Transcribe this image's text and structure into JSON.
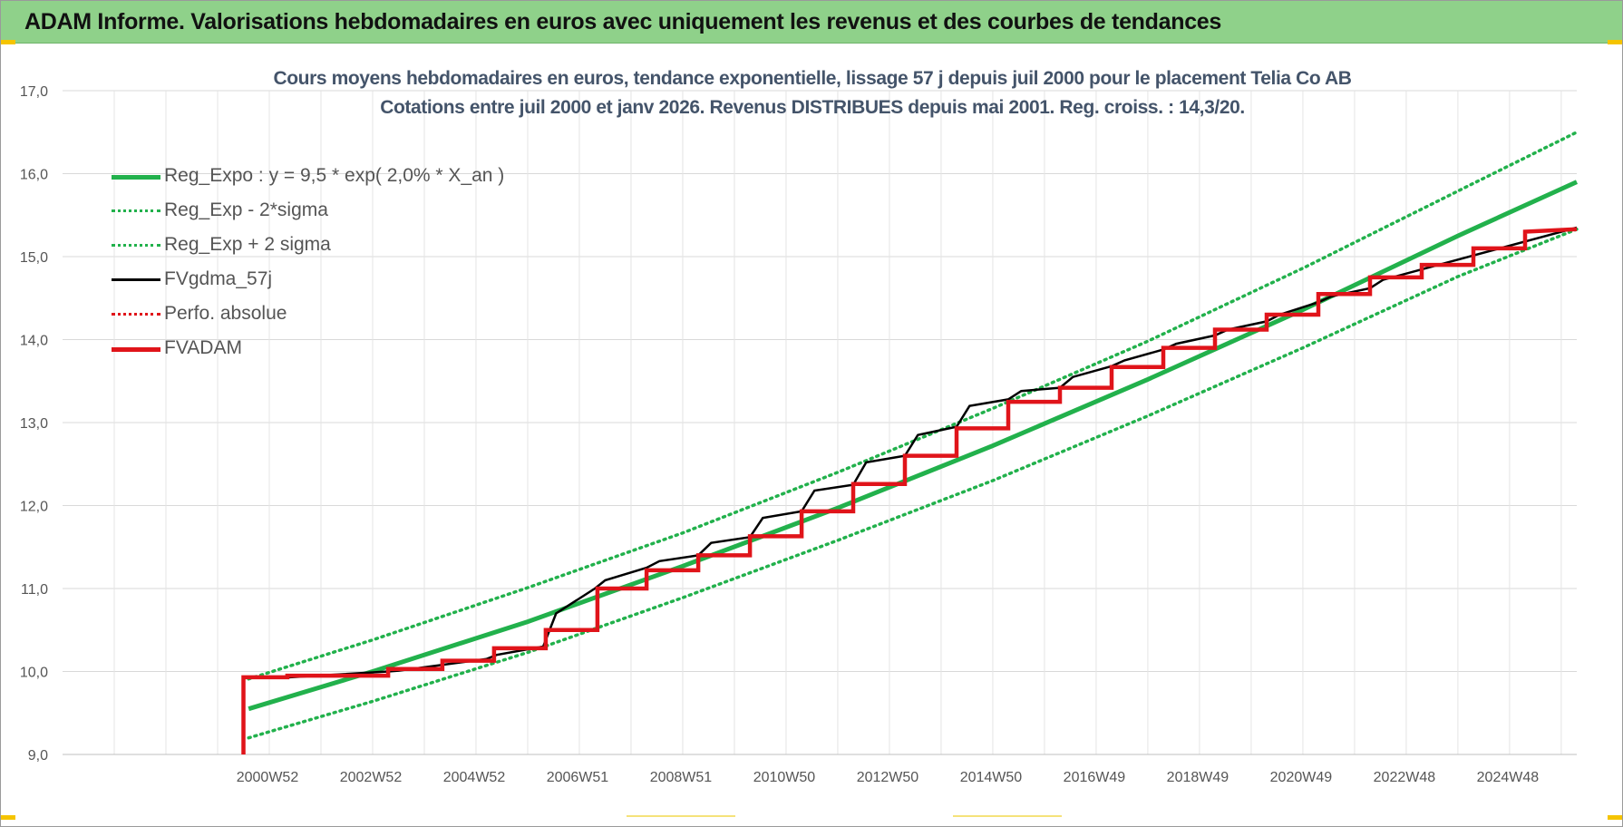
{
  "header": {
    "title": "ADAM Informe. Valorisations hebdomadaires en euros avec uniquement les revenus et des courbes de tendances"
  },
  "colors": {
    "header_bg": "#8fd18a",
    "trend": "#22b14c",
    "fv": "#000000",
    "adam": "#e0141a",
    "title": "#44546a"
  },
  "chart_data": {
    "type": "line",
    "title": "Cours moyens hebdomadaires en euros, tendance exponentielle, lissage 57 j depuis juil 2000 pour le placement Telia Co AB",
    "subtitle": "Cotations entre juil 2000 et janv 2026. Revenus DISTRIBUES depuis mai 2001. Reg. croiss. : 14,3/20.",
    "xlabel": "",
    "ylabel": "",
    "ylim": [
      9.0,
      17.0
    ],
    "xlim": [
      1997.0,
      2026.3
    ],
    "y_ticks": [
      "9,0",
      "10,0",
      "11,0",
      "12,0",
      "13,0",
      "14,0",
      "15,0",
      "16,0",
      "17,0"
    ],
    "x_ticks": [
      {
        "label": "2000W52",
        "x": 2001.0
      },
      {
        "label": "2002W52",
        "x": 2003.0
      },
      {
        "label": "2004W52",
        "x": 2005.0
      },
      {
        "label": "2006W51",
        "x": 2007.0
      },
      {
        "label": "2008W51",
        "x": 2009.0
      },
      {
        "label": "2010W50",
        "x": 2011.0
      },
      {
        "label": "2012W50",
        "x": 2013.0
      },
      {
        "label": "2014W50",
        "x": 2015.0
      },
      {
        "label": "2016W49",
        "x": 2017.0
      },
      {
        "label": "2018W49",
        "x": 2019.0
      },
      {
        "label": "2020W49",
        "x": 2021.0
      },
      {
        "label": "2022W48",
        "x": 2023.0
      },
      {
        "label": "2024W48",
        "x": 2025.0
      }
    ],
    "grid": true,
    "legend_position": "top-left",
    "series": [
      {
        "name": "Reg_Expo : y = 9,5 * exp( 2,0% *  X_an )",
        "style": "solid-thick",
        "color": "#22b14c",
        "x": [
          2000.6,
          2003.0,
          2006.0,
          2009.0,
          2012.0,
          2015.0,
          2018.0,
          2021.0,
          2024.0,
          2026.3
        ],
        "y": [
          9.55,
          10.0,
          10.6,
          11.27,
          11.97,
          12.72,
          13.52,
          14.36,
          15.25,
          15.9
        ]
      },
      {
        "name": "Reg_Exp - 2*sigma",
        "style": "dotted",
        "color": "#22b14c",
        "x": [
          2000.6,
          2003.0,
          2006.0,
          2009.0,
          2012.0,
          2015.0,
          2018.0,
          2021.0,
          2024.0,
          2026.3
        ],
        "y": [
          9.2,
          9.64,
          10.23,
          10.89,
          11.58,
          12.3,
          13.08,
          13.9,
          14.76,
          15.33
        ]
      },
      {
        "name": "Reg_Exp + 2 sigma",
        "style": "dotted",
        "color": "#22b14c",
        "x": [
          2000.6,
          2003.0,
          2006.0,
          2009.0,
          2012.0,
          2015.0,
          2018.0,
          2021.0,
          2024.0,
          2026.3
        ],
        "y": [
          9.91,
          10.38,
          11.01,
          11.67,
          12.4,
          13.17,
          13.98,
          14.86,
          15.79,
          16.5
        ]
      },
      {
        "name": "FVgdma_57j",
        "style": "solid-thin",
        "color": "#000000",
        "x": [
          2000.5,
          2000.5,
          2001.2,
          2001.4,
          2003.3,
          2003.5,
          2005.2,
          2005.4,
          2006.3,
          2006.55,
          2007.3,
          2007.5,
          2008.3,
          2008.55,
          2009.3,
          2009.55,
          2010.3,
          2010.55,
          2011.3,
          2011.55,
          2012.3,
          2012.55,
          2013.3,
          2013.55,
          2014.3,
          2014.55,
          2015.3,
          2015.55,
          2016.3,
          2016.55,
          2017.3,
          2017.55,
          2018.3,
          2018.55,
          2019.3,
          2019.55,
          2020.3,
          2020.55,
          2021.3,
          2021.55,
          2022.3,
          2022.55,
          2026.3
        ],
        "y": [
          9.0,
          9.92,
          9.92,
          9.93,
          10.0,
          10.01,
          10.15,
          10.2,
          10.3,
          10.7,
          11.0,
          11.1,
          11.25,
          11.33,
          11.4,
          11.55,
          11.62,
          11.85,
          11.93,
          12.18,
          12.25,
          12.52,
          12.6,
          12.85,
          12.95,
          13.2,
          13.28,
          13.38,
          13.42,
          13.55,
          13.68,
          13.75,
          13.88,
          13.95,
          14.05,
          14.12,
          14.22,
          14.3,
          14.45,
          14.52,
          14.62,
          14.72,
          15.35
        ]
      },
      {
        "name": "Perfo. absolue",
        "style": "dotted",
        "color": "#e0141a",
        "x": [],
        "y": []
      },
      {
        "name": "FVADAM",
        "style": "step-thick",
        "color": "#e0141a",
        "x": [
          2000.5,
          2000.5,
          2001.35,
          2001.35,
          2003.3,
          2003.3,
          2004.35,
          2004.35,
          2005.35,
          2005.35,
          2006.35,
          2006.35,
          2007.35,
          2007.35,
          2008.3,
          2008.3,
          2009.3,
          2009.3,
          2010.3,
          2010.3,
          2011.3,
          2011.3,
          2012.3,
          2012.3,
          2013.3,
          2013.3,
          2014.3,
          2014.3,
          2015.3,
          2015.3,
          2016.3,
          2016.3,
          2017.3,
          2017.3,
          2018.3,
          2018.3,
          2019.3,
          2019.3,
          2020.3,
          2020.3,
          2021.3,
          2021.3,
          2022.3,
          2022.3,
          2023.3,
          2023.3,
          2024.3,
          2024.3,
          2025.3,
          2025.3,
          2026.3
        ],
        "y": [
          9.0,
          9.93,
          9.93,
          9.95,
          9.95,
          10.03,
          10.03,
          10.13,
          10.13,
          10.28,
          10.28,
          10.5,
          10.5,
          11.0,
          11.0,
          11.22,
          11.22,
          11.4,
          11.4,
          11.63,
          11.63,
          11.93,
          11.93,
          12.26,
          12.26,
          12.6,
          12.6,
          12.93,
          12.93,
          13.25,
          13.25,
          13.42,
          13.42,
          13.67,
          13.67,
          13.9,
          13.9,
          14.12,
          14.12,
          14.3,
          14.3,
          14.55,
          14.55,
          14.75,
          14.75,
          14.9,
          14.9,
          15.1,
          15.1,
          15.3,
          15.33
        ]
      }
    ]
  }
}
